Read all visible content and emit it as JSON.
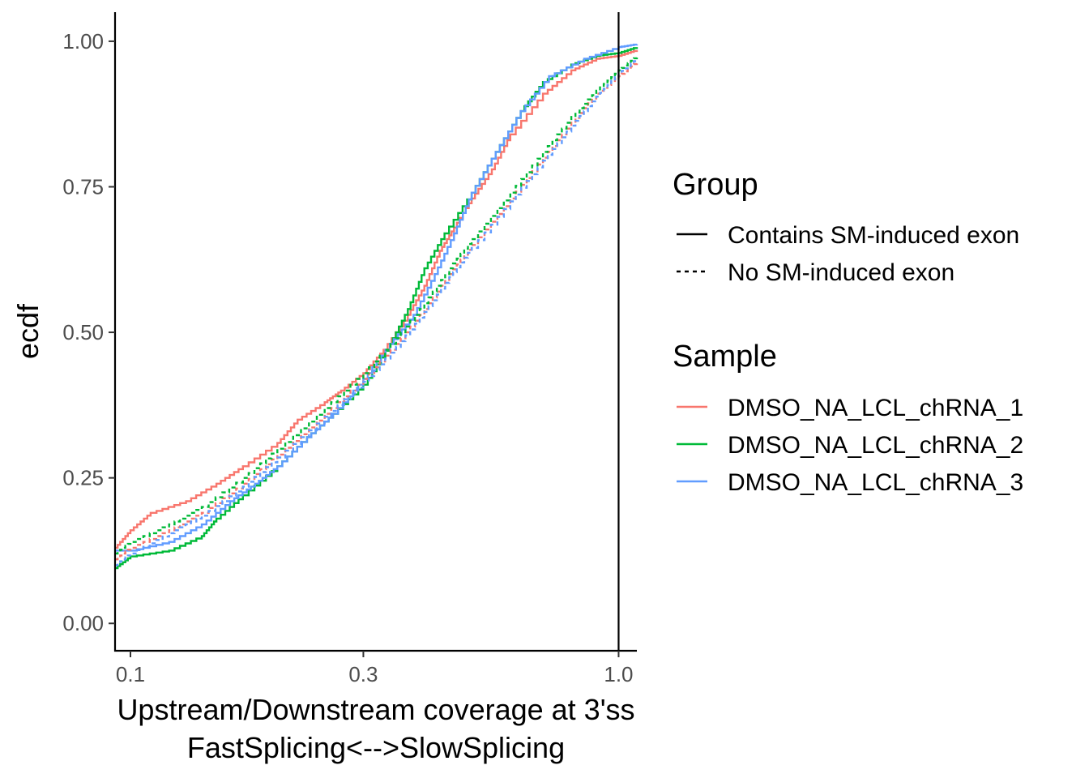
{
  "chart_data": {
    "type": "line",
    "xlabel": [
      "Upstream/Downstream coverage at 3'ss",
      "FastSplicing<-->SlowSplicing"
    ],
    "ylabel": "ecdf",
    "x_scale": "log10",
    "xlim": [
      0.093,
      1.09
    ],
    "ylim": [
      -0.047,
      1.05
    ],
    "x_ticks": [
      0.1,
      0.3,
      1.0
    ],
    "x_tick_labels": [
      "0.1",
      "0.3",
      "1.0"
    ],
    "y_ticks": [
      0,
      0.25,
      0.5,
      0.75,
      1.0
    ],
    "y_tick_labels": [
      "0.00",
      "0.25",
      "0.50",
      "0.75",
      "1.00"
    ],
    "vline": 1.0,
    "grid": false,
    "legend": {
      "placement": "right",
      "group": {
        "title": "Group",
        "entries": [
          {
            "label": "Contains SM-induced exon",
            "dash": "solid"
          },
          {
            "label": "No SM-induced exon",
            "dash": "dashed"
          }
        ]
      },
      "sample": {
        "title": "Sample",
        "entries": [
          {
            "label": "DMSO_NA_LCL_chRNA_1",
            "color": "#F8766D"
          },
          {
            "label": "DMSO_NA_LCL_chRNA_2",
            "color": "#00BA38"
          },
          {
            "label": "DMSO_NA_LCL_chRNA_3",
            "color": "#619CFF"
          }
        ]
      }
    },
    "series": [
      {
        "sample": "DMSO_NA_LCL_chRNA_1",
        "group": "Contains SM-induced exon",
        "color": "#F8766D",
        "dash": "solid",
        "points": [
          [
            0.093,
            0.13
          ],
          [
            0.1,
            0.16
          ],
          [
            0.11,
            0.19
          ],
          [
            0.13,
            0.21
          ],
          [
            0.15,
            0.24
          ],
          [
            0.17,
            0.27
          ],
          [
            0.2,
            0.31
          ],
          [
            0.22,
            0.35
          ],
          [
            0.25,
            0.38
          ],
          [
            0.27,
            0.4
          ],
          [
            0.3,
            0.43
          ],
          [
            0.33,
            0.47
          ],
          [
            0.37,
            0.53
          ],
          [
            0.4,
            0.58
          ],
          [
            0.43,
            0.64
          ],
          [
            0.46,
            0.68
          ],
          [
            0.5,
            0.73
          ],
          [
            0.55,
            0.78
          ],
          [
            0.6,
            0.84
          ],
          [
            0.7,
            0.91
          ],
          [
            0.8,
            0.95
          ],
          [
            0.9,
            0.97
          ],
          [
            1.0,
            0.975
          ],
          [
            1.09,
            0.985
          ]
        ]
      },
      {
        "sample": "DMSO_NA_LCL_chRNA_2",
        "group": "Contains SM-induced exon",
        "color": "#00BA38",
        "dash": "solid",
        "points": [
          [
            0.093,
            0.095
          ],
          [
            0.1,
            0.115
          ],
          [
            0.12,
            0.125
          ],
          [
            0.14,
            0.15
          ],
          [
            0.15,
            0.18
          ],
          [
            0.17,
            0.22
          ],
          [
            0.2,
            0.27
          ],
          [
            0.23,
            0.32
          ],
          [
            0.26,
            0.36
          ],
          [
            0.3,
            0.41
          ],
          [
            0.34,
            0.48
          ],
          [
            0.37,
            0.54
          ],
          [
            0.4,
            0.61
          ],
          [
            0.44,
            0.67
          ],
          [
            0.5,
            0.74
          ],
          [
            0.56,
            0.81
          ],
          [
            0.63,
            0.88
          ],
          [
            0.7,
            0.93
          ],
          [
            0.8,
            0.96
          ],
          [
            0.9,
            0.975
          ],
          [
            1.0,
            0.98
          ],
          [
            1.09,
            0.99
          ]
        ]
      },
      {
        "sample": "DMSO_NA_LCL_chRNA_3",
        "group": "Contains SM-induced exon",
        "color": "#619CFF",
        "dash": "solid",
        "points": [
          [
            0.093,
            0.125
          ],
          [
            0.1,
            0.125
          ],
          [
            0.12,
            0.14
          ],
          [
            0.14,
            0.17
          ],
          [
            0.16,
            0.21
          ],
          [
            0.18,
            0.24
          ],
          [
            0.2,
            0.27
          ],
          [
            0.23,
            0.32
          ],
          [
            0.26,
            0.36
          ],
          [
            0.3,
            0.42
          ],
          [
            0.34,
            0.48
          ],
          [
            0.38,
            0.53
          ],
          [
            0.42,
            0.6
          ],
          [
            0.46,
            0.67
          ],
          [
            0.5,
            0.74
          ],
          [
            0.56,
            0.81
          ],
          [
            0.63,
            0.88
          ],
          [
            0.72,
            0.94
          ],
          [
            0.85,
            0.97
          ],
          [
            1.0,
            0.99
          ],
          [
            1.09,
            0.995
          ]
        ]
      },
      {
        "sample": "DMSO_NA_LCL_chRNA_1",
        "group": "No SM-induced exon",
        "color": "#F8766D",
        "dash": "dashed",
        "points": [
          [
            0.093,
            0.11
          ],
          [
            0.1,
            0.13
          ],
          [
            0.12,
            0.16
          ],
          [
            0.14,
            0.19
          ],
          [
            0.17,
            0.24
          ],
          [
            0.2,
            0.29
          ],
          [
            0.25,
            0.36
          ],
          [
            0.3,
            0.42
          ],
          [
            0.35,
            0.48
          ],
          [
            0.4,
            0.54
          ],
          [
            0.45,
            0.6
          ],
          [
            0.5,
            0.65
          ],
          [
            0.6,
            0.73
          ],
          [
            0.7,
            0.8
          ],
          [
            0.8,
            0.86
          ],
          [
            0.9,
            0.91
          ],
          [
            1.0,
            0.94
          ],
          [
            1.09,
            0.965
          ]
        ]
      },
      {
        "sample": "DMSO_NA_LCL_chRNA_2",
        "group": "No SM-induced exon",
        "color": "#00BA38",
        "dash": "dashed",
        "points": [
          [
            0.093,
            0.12
          ],
          [
            0.1,
            0.14
          ],
          [
            0.12,
            0.17
          ],
          [
            0.14,
            0.2
          ],
          [
            0.17,
            0.25
          ],
          [
            0.2,
            0.3
          ],
          [
            0.25,
            0.37
          ],
          [
            0.3,
            0.43
          ],
          [
            0.35,
            0.49
          ],
          [
            0.4,
            0.55
          ],
          [
            0.45,
            0.61
          ],
          [
            0.5,
            0.66
          ],
          [
            0.6,
            0.74
          ],
          [
            0.7,
            0.81
          ],
          [
            0.8,
            0.87
          ],
          [
            0.9,
            0.915
          ],
          [
            1.0,
            0.95
          ],
          [
            1.09,
            0.975
          ]
        ]
      },
      {
        "sample": "DMSO_NA_LCL_chRNA_3",
        "group": "No SM-induced exon",
        "color": "#619CFF",
        "dash": "dashed",
        "points": [
          [
            0.093,
            0.1
          ],
          [
            0.1,
            0.12
          ],
          [
            0.12,
            0.155
          ],
          [
            0.14,
            0.185
          ],
          [
            0.17,
            0.235
          ],
          [
            0.2,
            0.285
          ],
          [
            0.25,
            0.355
          ],
          [
            0.3,
            0.415
          ],
          [
            0.35,
            0.475
          ],
          [
            0.4,
            0.535
          ],
          [
            0.45,
            0.595
          ],
          [
            0.5,
            0.645
          ],
          [
            0.6,
            0.725
          ],
          [
            0.7,
            0.795
          ],
          [
            0.8,
            0.855
          ],
          [
            0.9,
            0.905
          ],
          [
            1.0,
            0.945
          ],
          [
            1.09,
            0.97
          ]
        ]
      }
    ]
  }
}
